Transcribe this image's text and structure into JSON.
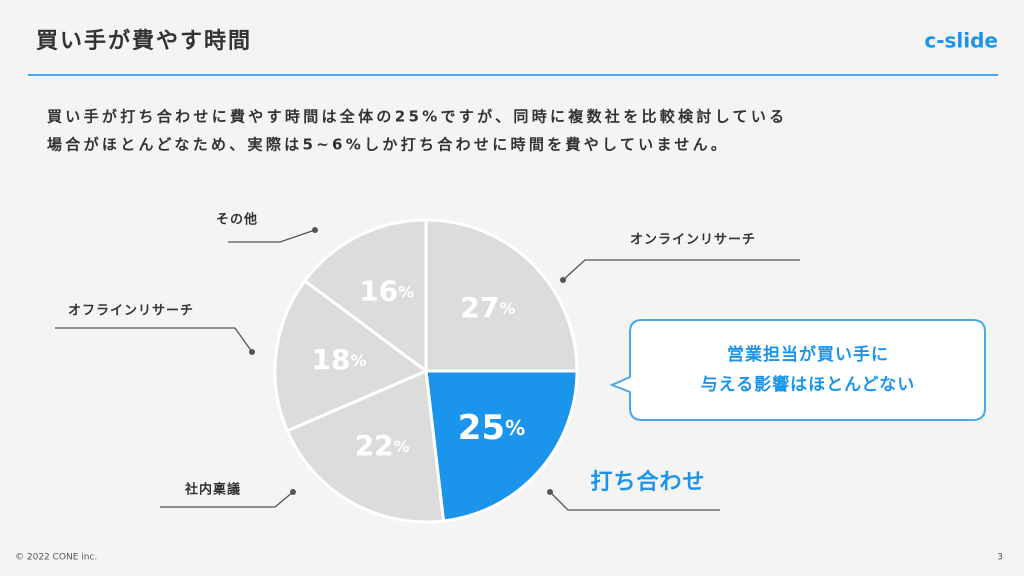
{
  "header": {
    "title": "買い手が費やす時間",
    "logo": "c-slide"
  },
  "description": [
    "買い手が打ち合わせに費やす時間は全体の25%ですが、同時に複数社を比較検討している",
    "場合がほとんどなため、実際は5~6%しか打ち合わせに時間を費やしていません。"
  ],
  "chart_data": {
    "type": "pie",
    "categories": [
      "オンラインリサーチ",
      "打ち合わせ",
      "社内稟議",
      "オフラインリサーチ",
      "その他"
    ],
    "values": [
      27,
      25,
      22,
      18,
      16
    ],
    "value_labels": [
      "27%",
      "25%",
      "22%",
      "18%",
      "16%"
    ],
    "colors": [
      "#dcdcdc",
      "#1b95ec",
      "#dcdcdc",
      "#dcdcdc",
      "#dcdcdc"
    ]
  },
  "callout": [
    "営業担当が買い手に",
    "与える影響はほとんどない"
  ],
  "footer": {
    "copyright": "© 2022 CONE inc.",
    "page": "3"
  }
}
